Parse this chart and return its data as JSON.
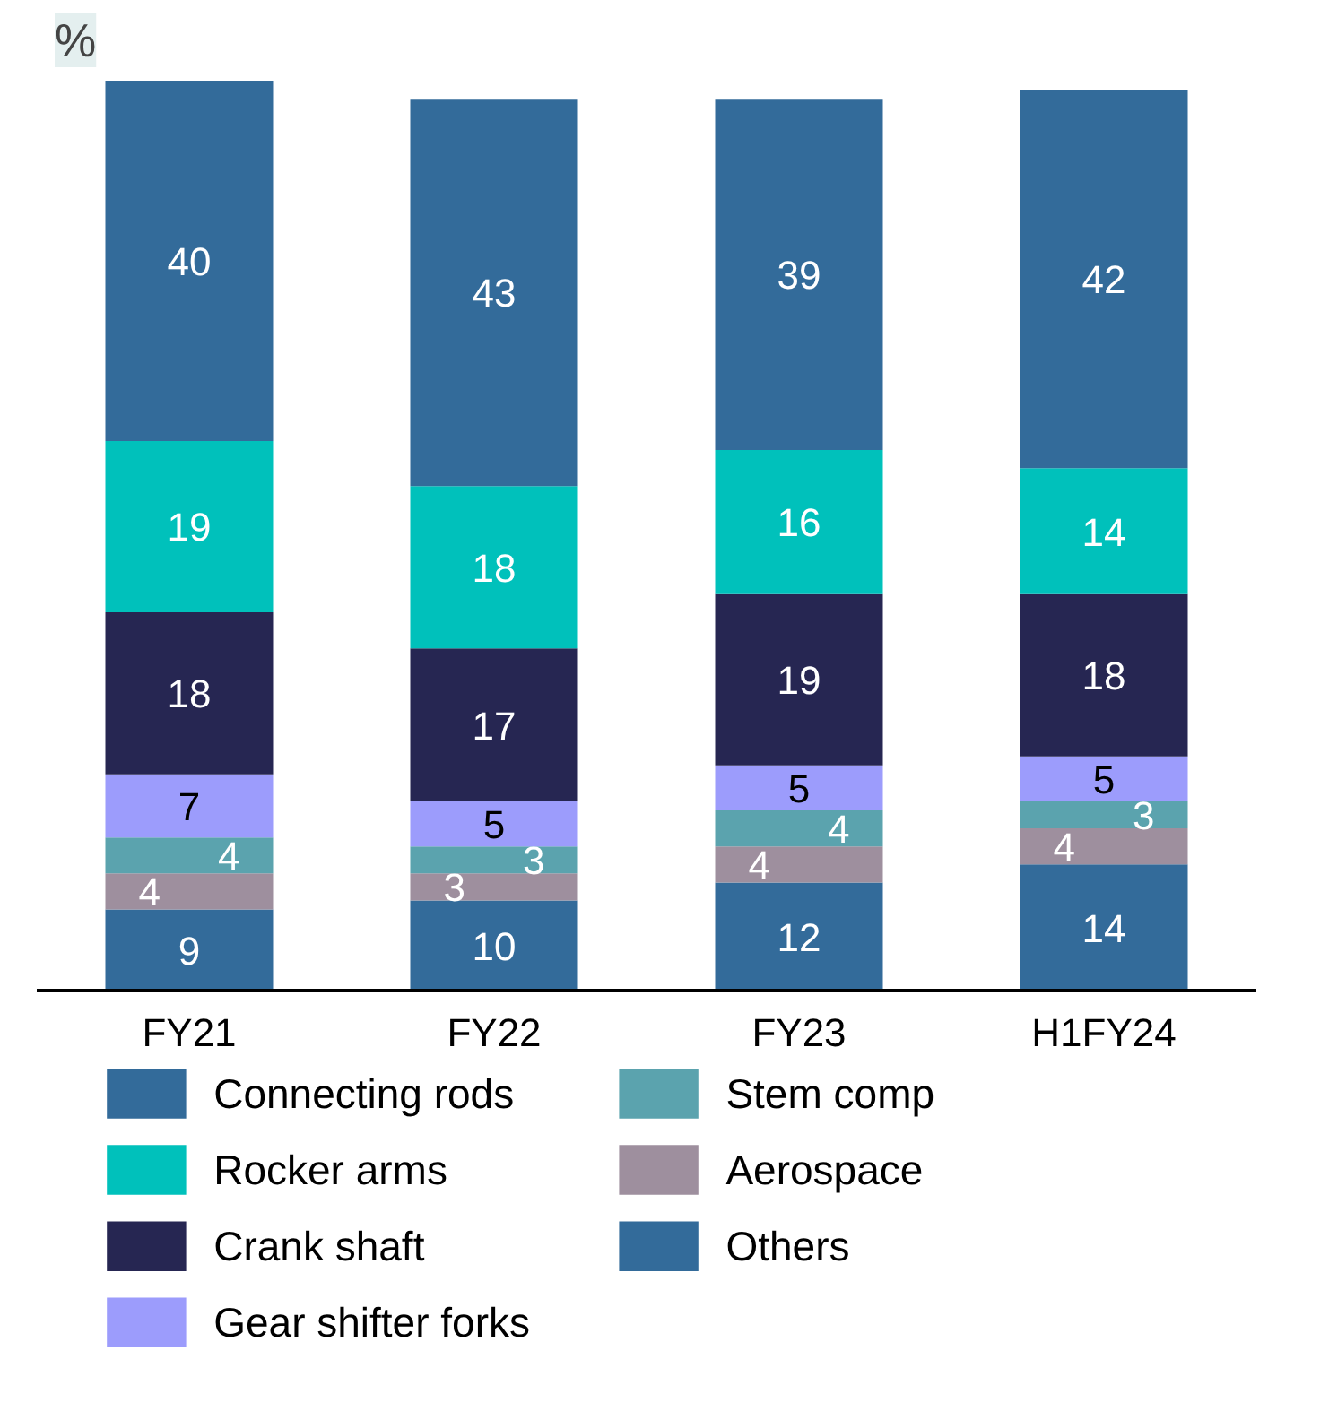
{
  "chart_data": {
    "type": "bar",
    "title": "%",
    "stacked": true,
    "data_labels": true,
    "legend": "bottom",
    "categories": [
      "FY21",
      "FY22",
      "FY23",
      "H1FY24"
    ],
    "series": [
      {
        "name": "Others",
        "color": "#336b9a",
        "values": [
          9,
          10,
          12,
          14
        ]
      },
      {
        "name": "Aerospace",
        "color": "#9e8f9e",
        "values": [
          4,
          3,
          4,
          4
        ]
      },
      {
        "name": "Stem comp",
        "color": "#5ba3ae",
        "values": [
          4,
          3,
          4,
          3
        ]
      },
      {
        "name": "Gear shifter forks",
        "color": "#9c9cfc",
        "values": [
          7,
          5,
          5,
          5
        ]
      },
      {
        "name": "Crank shaft",
        "color": "#262652",
        "values": [
          18,
          17,
          19,
          18
        ]
      },
      {
        "name": "Rocker arms",
        "color": "#00c1bb",
        "values": [
          19,
          18,
          16,
          14
        ]
      },
      {
        "name": "Connecting rods",
        "color": "#336b9a",
        "values": [
          40,
          43,
          39,
          42
        ]
      }
    ]
  }
}
